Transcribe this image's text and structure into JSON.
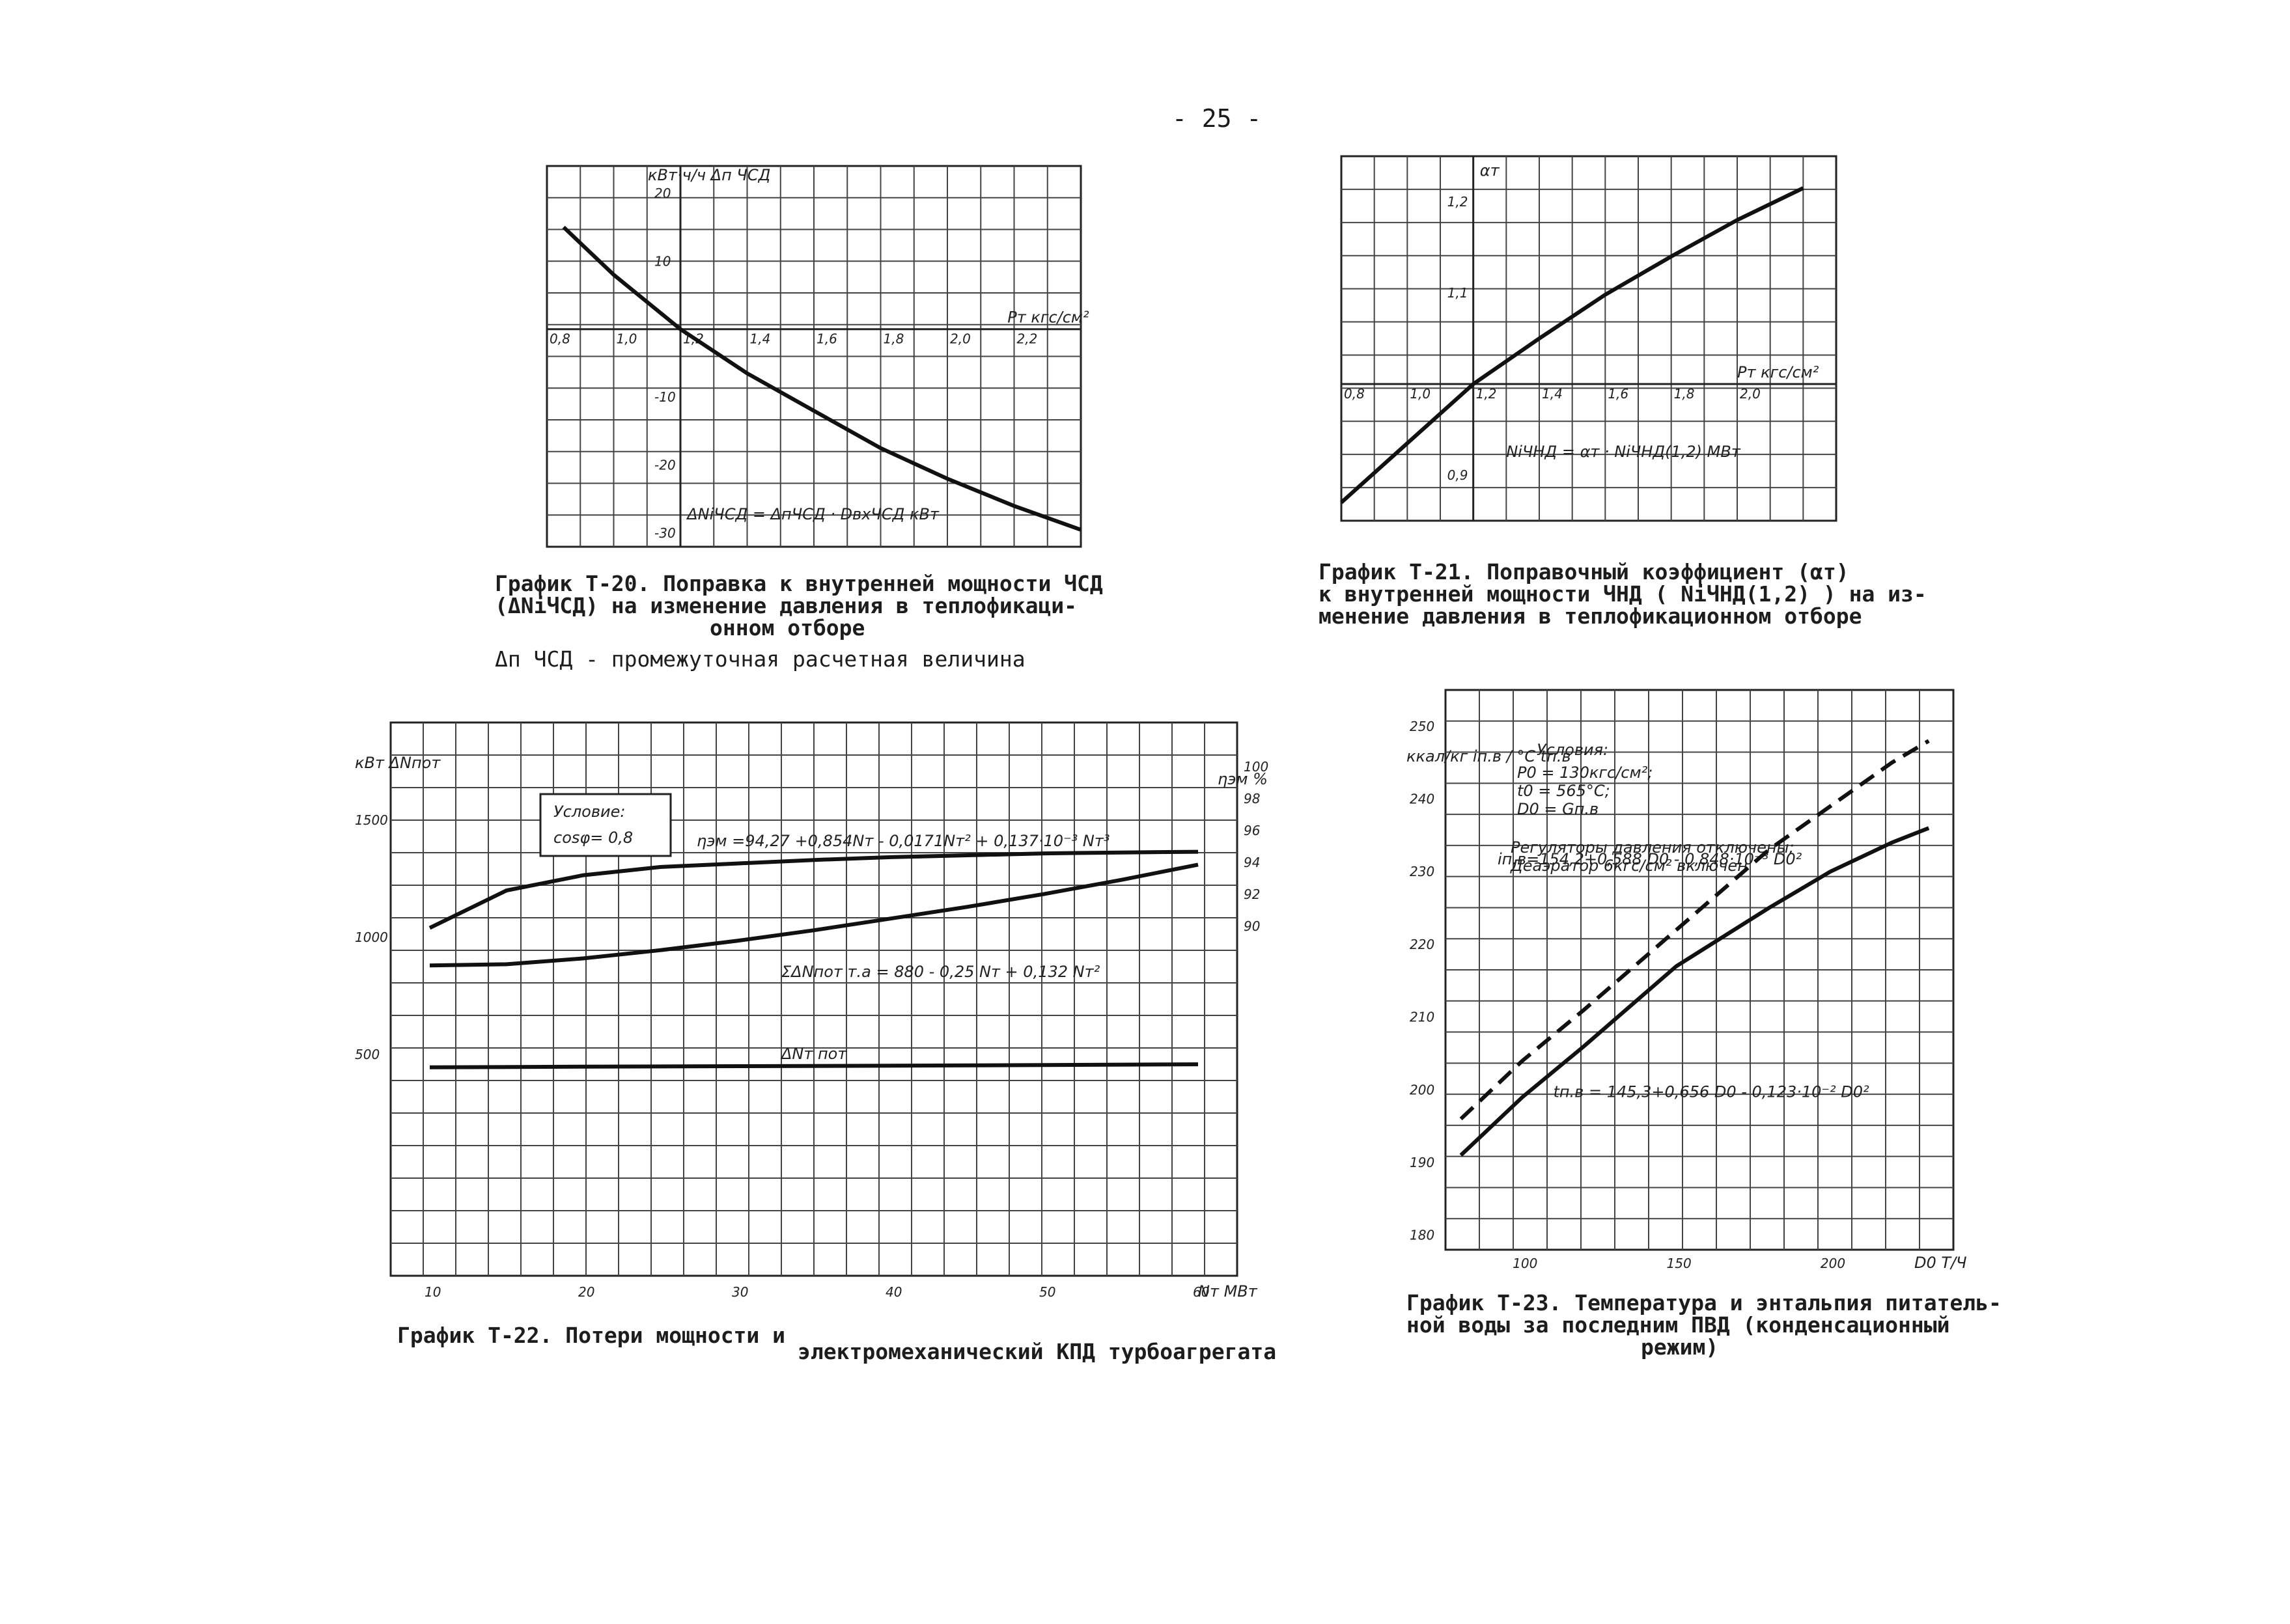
{
  "page_number": "- 25 -",
  "chart_data": [
    {
      "id": "T-20",
      "type": "line",
      "ylabel": "кВт·ч/ч  Δп ЧСД",
      "xlabel": "Pт кгс/см²",
      "x_ticks": [
        "0,8",
        "1,0",
        "1,2",
        "1,4",
        "1,6",
        "1,8",
        "2,0",
        "2,2"
      ],
      "y_ticks": [
        "20",
        "10",
        "-10",
        "-20",
        "-30"
      ],
      "xlim": [
        0.8,
        2.4
      ],
      "ylim": [
        -32,
        24
      ],
      "series": [
        {
          "x": [
            0.85,
            1.0,
            1.2,
            1.4,
            1.6,
            1.8,
            2.0,
            2.2,
            2.4
          ],
          "y": [
            15,
            8,
            0,
            -6.5,
            -12,
            -17.5,
            -22,
            -26,
            -29.5
          ]
        }
      ],
      "annotation": "ΔNiЧСД = ΔпЧСД · DвхЧСД кВт",
      "caption": [
        "График Т-20. Поправка к внутренней мощности ЧСД",
        "(ΔNiЧСД) на изменение давления в теплофикаци-",
        "онном отборе",
        "Δп ЧСД - промежуточная расчетная величина"
      ]
    },
    {
      "id": "T-21",
      "type": "line",
      "ylabel": "αт",
      "xlabel": "Pт кгс/см²",
      "x_ticks": [
        "0,8",
        "1,0",
        "1,2",
        "1,4",
        "1,6",
        "1,8",
        "2,0"
      ],
      "y_ticks": [
        "1,2",
        "1,1",
        "0,9"
      ],
      "xlim": [
        0.8,
        2.3
      ],
      "ylim": [
        0.85,
        1.25
      ],
      "series": [
        {
          "x": [
            0.8,
            1.0,
            1.2,
            1.4,
            1.6,
            1.8,
            2.0,
            2.2
          ],
          "y": [
            0.87,
            0.935,
            1.0,
            1.05,
            1.098,
            1.14,
            1.18,
            1.215
          ]
        }
      ],
      "annotation": "NiЧНД = αт · NiЧНД(1,2) МВт",
      "caption": [
        "График Т-21. Поправочный коэффициент (αт)",
        "к внутренней мощности ЧНД ( NiЧНД(1,2) ) на из-",
        "менение давления в теплофикационном отборе"
      ]
    },
    {
      "id": "T-22",
      "type": "line",
      "ylabel": "кВт ΔNпот",
      "y2label": "ηэм %",
      "xlabel": "Nт МВт",
      "x_ticks": [
        "10",
        "20",
        "30",
        "40",
        "50",
        "60"
      ],
      "y_ticks": [
        "1500",
        "1000",
        "500"
      ],
      "y2_ticks": [
        "100",
        "98",
        "96",
        "94",
        "92",
        "90"
      ],
      "xlim": [
        10,
        60
      ],
      "ylim": [
        0,
        1500
      ],
      "condition_title": "Условие:",
      "condition": "cosφ= 0,8",
      "series": [
        {
          "name": "ηэм",
          "x": [
            10,
            15,
            20,
            25,
            30,
            35,
            40,
            45,
            50,
            55,
            60
          ],
          "y": [
            1040,
            1200,
            1265,
            1300,
            1315,
            1330,
            1342,
            1350,
            1358,
            1362,
            1365
          ]
        },
        {
          "name": "ΣΔNпот т.а",
          "x": [
            10,
            15,
            20,
            25,
            30,
            35,
            40,
            45,
            50,
            55,
            60
          ],
          "y": [
            880,
            885,
            910,
            945,
            985,
            1030,
            1080,
            1130,
            1185,
            1245,
            1310
          ]
        },
        {
          "name": "ΔNт пот",
          "x": [
            10,
            20,
            30,
            40,
            50,
            60
          ],
          "y": [
            445,
            448,
            450,
            452,
            455,
            458
          ]
        }
      ],
      "formulas": {
        "eta": "ηэм =94,27 +0,854Nт - 0,0171Nт² + 0,137·10⁻³ Nт³",
        "sum": "ΣΔNпот т.а = 880 - 0,25 Nт + 0,132 Nт²",
        "dn": "ΔNт пот"
      },
      "caption": [
        "График Т-22. Потери мощности и",
        "электромеханический КПД турбоагрегата"
      ]
    },
    {
      "id": "T-23",
      "type": "line",
      "ylabel": "ккал/кг iп.в / °С tп.в",
      "xlabel": "D0 Т/Ч",
      "x_ticks": [
        "100",
        "150",
        "200"
      ],
      "y_ticks": [
        "250",
        "240",
        "230",
        "220",
        "210",
        "200",
        "190",
        "180"
      ],
      "xlim": [
        75,
        240
      ],
      "ylim": [
        178,
        255
      ],
      "condition_title": "Условия:",
      "conditions": [
        "P0 = 130кгс/см²;",
        "t0 = 565°С;",
        "D0 = Gп.в"
      ],
      "note": [
        "Регуляторы давления отключены;",
        "Деаэратор 6кгс/см² включен"
      ],
      "series": [
        {
          "name": "iп.в",
          "dashed": true,
          "x": [
            80,
            100,
            120,
            150,
            180,
            200,
            220,
            232
          ],
          "y": [
            196,
            204,
            211,
            222,
            233,
            239,
            245,
            248
          ]
        },
        {
          "name": "tп.в",
          "dashed": false,
          "x": [
            80,
            100,
            120,
            150,
            180,
            200,
            220,
            232
          ],
          "y": [
            191,
            199,
            206,
            217,
            225,
            230,
            234,
            236
          ]
        }
      ],
      "formulas": {
        "i": "iп.в=154,2+0,588 D0 - 0,848·10⁻³ D0²",
        "t": "tп.в = 145,3+0,656 D0 - 0,123·10⁻² D0²"
      },
      "caption": [
        "График Т-23. Температура и энтальпия питатель-",
        "ной воды за последним ПВД (конденсационный",
        "режим)"
      ]
    }
  ]
}
